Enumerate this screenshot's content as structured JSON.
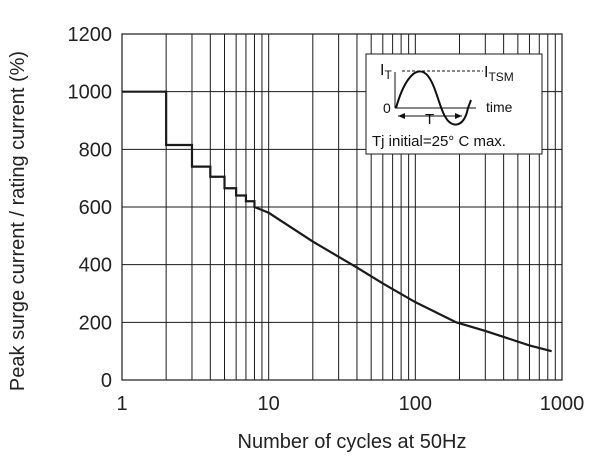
{
  "chart_data": {
    "type": "line",
    "xlabel": "Number of cycles at 50Hz",
    "ylabel": "Peak surge current / rating current (%)",
    "x_scale": "log",
    "xlim": [
      1,
      1000
    ],
    "ylim": [
      0,
      1200
    ],
    "x_ticks": [
      "1",
      "10",
      "100",
      "1000"
    ],
    "y_ticks": [
      "0",
      "200",
      "400",
      "600",
      "800",
      "1000",
      "1200"
    ],
    "grid": true,
    "series": [
      {
        "line_style": "step-then-curve",
        "points": [
          [
            1,
            1000
          ],
          [
            2,
            1000
          ],
          [
            2,
            815
          ],
          [
            3,
            815
          ],
          [
            3,
            740
          ],
          [
            4,
            740
          ],
          [
            4,
            705
          ],
          [
            5,
            705
          ],
          [
            5,
            665
          ],
          [
            6,
            665
          ],
          [
            6,
            640
          ],
          [
            7,
            640
          ],
          [
            7,
            620
          ],
          [
            8,
            620
          ],
          [
            8,
            600
          ],
          [
            10,
            580
          ],
          [
            20,
            480
          ],
          [
            40,
            390
          ],
          [
            60,
            335
          ],
          [
            100,
            270
          ],
          [
            190,
            200
          ],
          [
            300,
            170
          ],
          [
            600,
            120
          ],
          [
            850,
            100
          ]
        ]
      }
    ],
    "inset": {
      "label_it": "I",
      "label_it_sub": "T",
      "label_itsm": "I",
      "label_itsm_sub": "TSM",
      "label_zero": "0",
      "label_t": "T",
      "label_time": "time",
      "note": "Tj initial=25° C max."
    }
  }
}
